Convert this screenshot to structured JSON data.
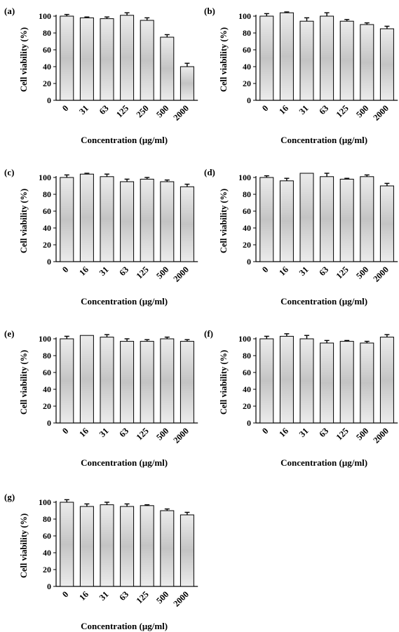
{
  "figure": {
    "chart_data": [
      {
        "type": "bar",
        "panel_label": "(a)",
        "ylabel": "Cell viability (%)",
        "xlabel": "Concentration (μg/ml)",
        "categories": [
          "0",
          "31",
          "63",
          "125",
          "250",
          "500",
          "2000"
        ],
        "values": [
          100,
          98,
          97,
          101,
          95,
          75,
          40
        ],
        "errors": [
          2,
          1,
          2,
          3,
          3,
          3,
          4
        ],
        "yticks": [
          "0",
          "20",
          "40",
          "60",
          "80",
          "100"
        ],
        "ylim": [
          0,
          100
        ],
        "grid": false
      },
      {
        "type": "bar",
        "panel_label": "(b)",
        "ylabel": "Cell viability (%)",
        "xlabel": "Concentration (μg/ml)",
        "categories": [
          "0",
          "16",
          "31",
          "63",
          "125",
          "500",
          "2000"
        ],
        "values": [
          100,
          104,
          94,
          100,
          94,
          90,
          85
        ],
        "errors": [
          3,
          1,
          4,
          4,
          2,
          2,
          3
        ],
        "yticks": [
          "0",
          "20",
          "40",
          "60",
          "80",
          "100"
        ],
        "ylim": [
          0,
          100
        ],
        "grid": false
      },
      {
        "type": "bar",
        "panel_label": "(c)",
        "ylabel": "Cell viability (%)",
        "xlabel": "Concentration (μg/ml)",
        "categories": [
          "0",
          "16",
          "31",
          "63",
          "125",
          "500",
          "2000"
        ],
        "values": [
          100,
          104,
          101,
          95,
          98,
          95,
          89
        ],
        "errors": [
          3,
          1,
          3,
          3,
          2,
          2,
          3
        ],
        "yticks": [
          "0",
          "20",
          "40",
          "60",
          "80",
          "100"
        ],
        "ylim": [
          0,
          100
        ],
        "grid": false
      },
      {
        "type": "bar",
        "panel_label": "(d)",
        "ylabel": "Cell viability (%)",
        "xlabel": "Concentration (μg/ml)",
        "categories": [
          "0",
          "16",
          "31",
          "63",
          "125",
          "500",
          "2000"
        ],
        "values": [
          100,
          96,
          105,
          101,
          98,
          101,
          90
        ],
        "errors": [
          2,
          3,
          0,
          4,
          1,
          2,
          3
        ],
        "yticks": [
          "0",
          "20",
          "40",
          "60",
          "80",
          "100"
        ],
        "ylim": [
          0,
          100
        ],
        "grid": false
      },
      {
        "type": "bar",
        "panel_label": "(e)",
        "ylabel": "Cell viability (%)",
        "xlabel": "Concentration (μg/ml)",
        "categories": [
          "0",
          "16",
          "31",
          "63",
          "125",
          "500",
          "2000"
        ],
        "values": [
          100,
          104,
          102,
          97,
          97,
          100,
          97
        ],
        "errors": [
          3,
          0,
          3,
          3,
          2,
          2,
          2
        ],
        "yticks": [
          "0",
          "20",
          "40",
          "60",
          "80",
          "100"
        ],
        "ylim": [
          0,
          100
        ],
        "grid": false
      },
      {
        "type": "bar",
        "panel_label": "(f)",
        "ylabel": "Cell viability (%)",
        "xlabel": "Concentration (μg/ml)",
        "categories": [
          "0",
          "16",
          "31",
          "63",
          "125",
          "500",
          "2000"
        ],
        "values": [
          100,
          103,
          100,
          95,
          97,
          95,
          102
        ],
        "errors": [
          3,
          3,
          4,
          3,
          1,
          2,
          3
        ],
        "yticks": [
          "0",
          "20",
          "40",
          "60",
          "80",
          "100"
        ],
        "ylim": [
          0,
          100
        ],
        "grid": false
      },
      {
        "type": "bar",
        "panel_label": "(g)",
        "ylabel": "Cell viability (%)",
        "xlabel": "Concentration (μg/ml)",
        "categories": [
          "0",
          "16",
          "31",
          "63",
          "125",
          "500",
          "2000"
        ],
        "values": [
          100,
          95,
          97,
          95,
          96,
          90,
          85
        ],
        "errors": [
          3,
          3,
          3,
          3,
          1,
          2,
          3
        ],
        "yticks": [
          "0",
          "20",
          "40",
          "60",
          "80",
          "100"
        ],
        "ylim": [
          0,
          100
        ],
        "grid": false
      }
    ],
    "colors": {
      "bar_fill_edge": "#ececec",
      "bar_fill_center": "#c4c4c4",
      "axis": "#000000"
    }
  }
}
